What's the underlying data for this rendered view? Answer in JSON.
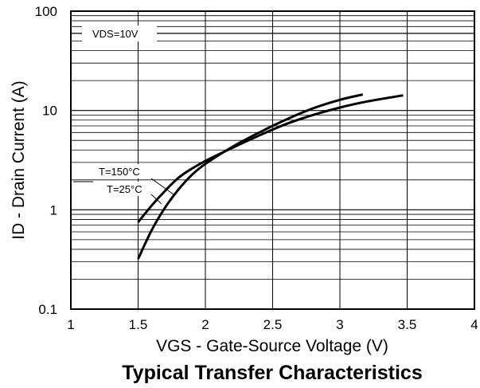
{
  "chart_data": {
    "type": "line",
    "title": "Typical Transfer Characteristics",
    "xlabel": "VGS - Gate-Source Voltage (V)",
    "ylabel": "ID - Drain Current (A)",
    "xlim": [
      1,
      4
    ],
    "ylim": [
      0.1,
      100
    ],
    "yscale": "log",
    "grid": true,
    "x_ticks": [
      "1",
      "1.5",
      "2",
      "2.5",
      "3",
      "3.5",
      "4"
    ],
    "y_ticks": [
      "0.1",
      "1",
      "10",
      "100"
    ],
    "annotations": [
      "VDS=10V",
      "T=150°C",
      "T=25°C"
    ],
    "series": [
      {
        "name": "T=150°C",
        "x": [
          1.5,
          1.6,
          1.7,
          1.8,
          1.9,
          2.0,
          2.2,
          2.4,
          2.6,
          2.8,
          3.0,
          3.2,
          3.47
        ],
        "y": [
          0.75,
          1.1,
          1.55,
          2.1,
          2.6,
          3.1,
          4.2,
          5.6,
          7.3,
          9.0,
          10.7,
          12.3,
          14.2
        ]
      },
      {
        "name": "T=25°C",
        "x": [
          1.5,
          1.6,
          1.7,
          1.8,
          1.9,
          2.0,
          2.2,
          2.4,
          2.6,
          2.8,
          3.0,
          3.17
        ],
        "y": [
          0.32,
          0.62,
          1.05,
          1.6,
          2.25,
          2.9,
          4.3,
          6.0,
          8.1,
          10.5,
          12.8,
          14.5
        ]
      }
    ]
  }
}
